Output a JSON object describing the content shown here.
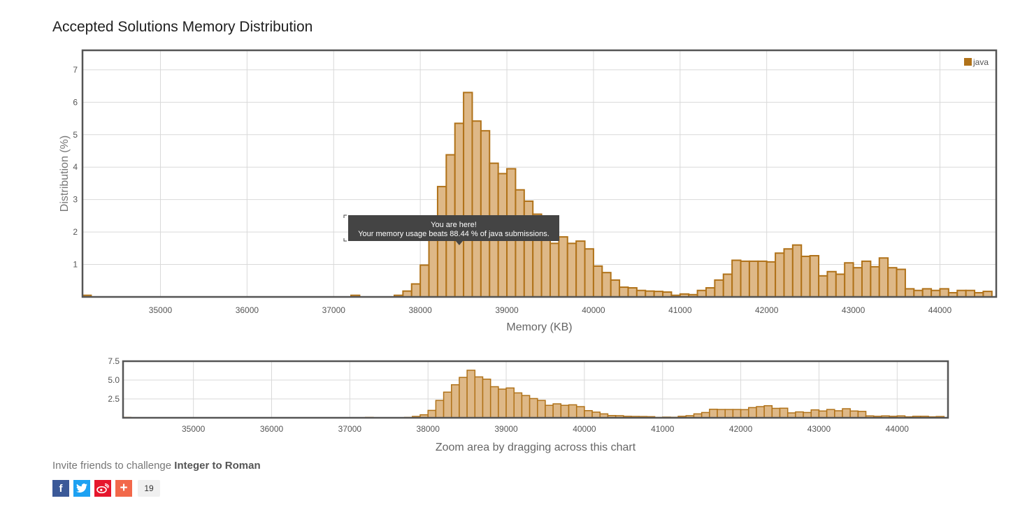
{
  "page": {
    "title": "Accepted Solutions Memory Distribution",
    "invite_prefix": "Invite friends to challenge ",
    "invite_problem": "Integer to Roman",
    "share_count": "19",
    "share_buttons": [
      "facebook-icon",
      "twitter-icon",
      "weibo-icon",
      "plus-icon"
    ]
  },
  "colors": {
    "bar_fill": "#deb887",
    "bar_stroke": "#b07219",
    "legend": "#b07219",
    "tooltip_bg": "#444444"
  },
  "tooltip": {
    "line1": "You are here!",
    "line2": "Your memory usage beats 88.44 % of java submissions."
  },
  "zoom_caption": "Zoom area by dragging across this chart",
  "chart_data": [
    {
      "type": "bar",
      "xlabel": "Memory (KB)",
      "ylabel": "Distribution (%)",
      "xlim": [
        34100,
        44650
      ],
      "ylim": [
        0,
        7.6
      ],
      "xticks": [
        35000,
        36000,
        37000,
        38000,
        39000,
        40000,
        41000,
        42000,
        43000,
        44000
      ],
      "yticks": [
        1,
        2,
        3,
        4,
        5,
        6,
        7
      ],
      "bin_width": 100,
      "legend": {
        "labels": [
          "java"
        ],
        "position": "top-right"
      },
      "grid": true,
      "highlight_x": 38400,
      "series": [
        {
          "name": "java",
          "x": [
            34100,
            37200,
            37700,
            37800,
            37900,
            38000,
            38100,
            38200,
            38300,
            38400,
            38500,
            38600,
            38700,
            38800,
            38900,
            39000,
            39100,
            39200,
            39300,
            39400,
            39500,
            39600,
            39700,
            39800,
            39900,
            40000,
            40100,
            40200,
            40300,
            40400,
            40500,
            40600,
            40700,
            40800,
            40900,
            41000,
            41100,
            41200,
            41300,
            41400,
            41500,
            41600,
            41700,
            41800,
            41900,
            42000,
            42100,
            42200,
            42300,
            42400,
            42500,
            42600,
            42700,
            42800,
            42900,
            43000,
            43100,
            43200,
            43300,
            43400,
            43500,
            43600,
            43700,
            43800,
            43900,
            44000,
            44100,
            44200,
            44300,
            44400,
            44500
          ],
          "values": [
            0.05,
            0.05,
            0.05,
            0.18,
            0.4,
            0.98,
            2.3,
            3.4,
            4.38,
            5.35,
            6.3,
            5.42,
            5.12,
            4.12,
            3.8,
            3.95,
            3.3,
            2.95,
            2.55,
            2.3,
            1.65,
            1.85,
            1.65,
            1.72,
            1.48,
            0.95,
            0.75,
            0.52,
            0.3,
            0.28,
            0.2,
            0.18,
            0.17,
            0.15,
            0.05,
            0.09,
            0.07,
            0.2,
            0.28,
            0.52,
            0.7,
            1.13,
            1.1,
            1.1,
            1.1,
            1.08,
            1.35,
            1.48,
            1.6,
            1.25,
            1.27,
            0.65,
            0.78,
            0.7,
            1.05,
            0.9,
            1.1,
            0.93,
            1.2,
            0.9,
            0.85,
            0.25,
            0.2,
            0.25,
            0.2,
            0.25,
            0.13,
            0.2,
            0.2,
            0.13,
            0.17
          ]
        }
      ]
    },
    {
      "type": "bar",
      "xlabel": "",
      "ylabel": "",
      "xlim": [
        34100,
        44650
      ],
      "ylim": [
        0,
        7.5
      ],
      "xticks": [
        35000,
        36000,
        37000,
        38000,
        39000,
        40000,
        41000,
        42000,
        43000,
        44000
      ],
      "yticks": [
        2.5,
        5.0,
        7.5
      ],
      "ytick_labels": [
        "2.5",
        "5.0",
        "7.5"
      ],
      "grid": true,
      "note": "overview of same series"
    }
  ]
}
